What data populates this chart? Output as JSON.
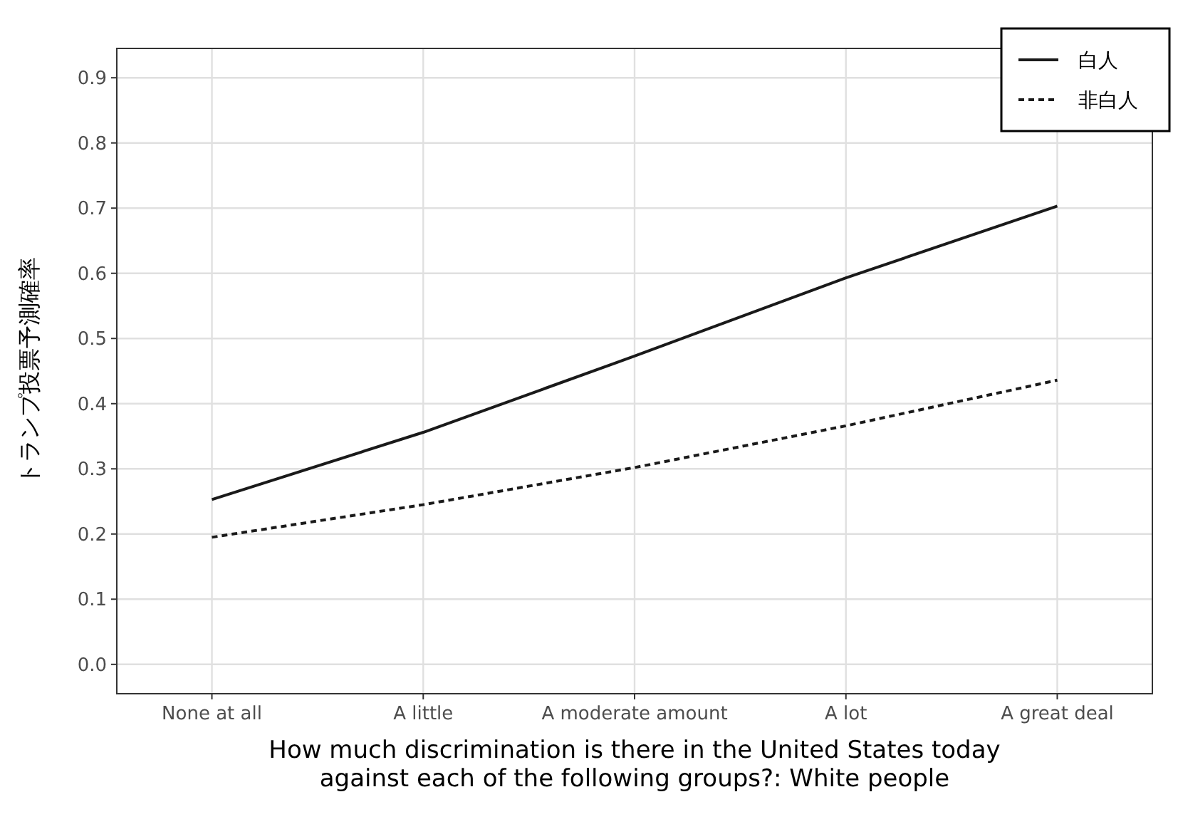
{
  "chart_data": {
    "type": "line",
    "xlabel": "How much discrimination is there in the United States today\nagainst each of the following groups?: White people",
    "ylabel": "トランプ投票予測確率",
    "categories": [
      "None at all",
      "A little",
      "A moderate amount",
      "A lot",
      "A great deal"
    ],
    "series": [
      {
        "name": "白人",
        "color": "#1a1a1a",
        "line_style": "solid",
        "values": [
          0.253,
          0.356,
          0.473,
          0.593,
          0.703
        ]
      },
      {
        "name": "非白人",
        "color": "#1a1a1a",
        "line_style": "dashed",
        "values": [
          0.195,
          0.245,
          0.302,
          0.366,
          0.436
        ]
      }
    ],
    "ylim": [
      -0.045,
      0.945
    ],
    "yticks": [
      {
        "value": 0,
        "label": "0.0"
      },
      0.1,
      0.2,
      0.3,
      0.4,
      0.5,
      0.6,
      0.7,
      0.8,
      0.9
    ],
    "grid": true,
    "legend": "top right"
  }
}
